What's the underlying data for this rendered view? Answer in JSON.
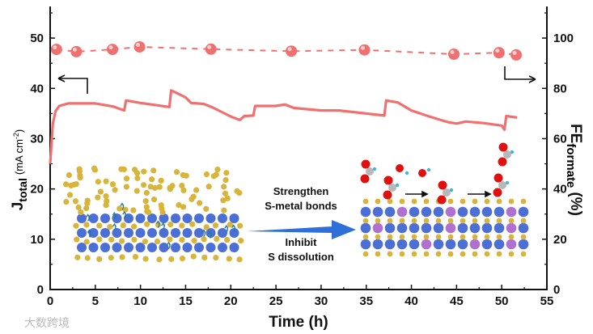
{
  "chart_data": {
    "type": "line",
    "title": "",
    "xlabel": "Time (h)",
    "ylabel_left": {
      "main": "J",
      "sub": "total",
      "unit": "(mA cm",
      "sup": "-2",
      "close": ")"
    },
    "ylabel_right": {
      "main": "FE",
      "sub": "formate",
      "unit": "(%)"
    },
    "xlim": [
      0,
      55
    ],
    "ylim_left": [
      0,
      55
    ],
    "ylim_right": [
      0,
      110
    ],
    "xticks": [
      "0",
      "5",
      "10",
      "15",
      "20",
      "25",
      "30",
      "35",
      "40",
      "45",
      "50",
      "55"
    ],
    "yticks_left": [
      "0",
      "10",
      "20",
      "30",
      "40",
      "50"
    ],
    "yticks_right": [
      "0",
      "20",
      "40",
      "60",
      "80",
      "100"
    ],
    "grid": false,
    "series": [
      {
        "name": "J_total",
        "axis": "left",
        "color": "#f07070",
        "style": "solid",
        "points": [
          [
            0,
            25
          ],
          [
            0.3,
            33
          ],
          [
            0.6,
            35.5
          ],
          [
            1,
            36.5
          ],
          [
            2,
            37
          ],
          [
            5,
            37
          ],
          [
            7,
            36.4
          ],
          [
            8.2,
            35.6
          ],
          [
            8.4,
            37.6
          ],
          [
            10,
            37.1
          ],
          [
            12,
            36.6
          ],
          [
            13.2,
            36.3
          ],
          [
            13.4,
            39.6
          ],
          [
            14,
            39.1
          ],
          [
            15,
            38.2
          ],
          [
            15.6,
            37.1
          ],
          [
            17,
            36.9
          ],
          [
            18,
            36.2
          ],
          [
            19,
            35.3
          ],
          [
            20,
            34.4
          ],
          [
            21,
            33.7
          ],
          [
            21.5,
            34.5
          ],
          [
            22.5,
            34.6
          ],
          [
            22.7,
            36.5
          ],
          [
            25,
            36.5
          ],
          [
            26,
            36.8
          ],
          [
            27,
            36.1
          ],
          [
            30,
            35.6
          ],
          [
            32,
            35.6
          ],
          [
            35,
            35
          ],
          [
            37,
            34.6
          ],
          [
            37.2,
            37.6
          ],
          [
            38.5,
            37.2
          ],
          [
            40,
            35.6
          ],
          [
            42,
            34.4
          ],
          [
            44,
            33.3
          ],
          [
            45,
            33
          ],
          [
            46,
            33.4
          ],
          [
            48,
            33.1
          ],
          [
            50,
            32.6
          ],
          [
            50.3,
            31.8
          ],
          [
            50.5,
            34.5
          ],
          [
            51.7,
            34.2
          ]
        ]
      },
      {
        "name": "FE_formate",
        "axis": "right",
        "color": "#f07070",
        "style": "dashed-with-spheres",
        "points": [
          [
            0.7,
            95.5
          ],
          [
            2.9,
            94.6
          ],
          [
            6.9,
            95.5
          ],
          [
            9.9,
            96.5
          ],
          [
            17.8,
            95.6
          ],
          [
            26.7,
            94.8
          ],
          [
            34.8,
            95.3
          ],
          [
            44.7,
            93.6
          ],
          [
            49.7,
            94.2
          ],
          [
            51.6,
            93.3
          ]
        ]
      }
    ],
    "annotations": {
      "left_axis_arrow": "arrow pointing to left axis",
      "right_axis_arrow": "arrow pointing to right axis"
    },
    "inset": {
      "arrow_text_top": [
        "Strengthen",
        "S-metal bonds"
      ],
      "arrow_text_bottom": [
        "Inhibit",
        "S dissolution"
      ],
      "colors": {
        "sulfur": "#d8b43a",
        "metal": "#4c6fd6",
        "dopant": "#b070d0",
        "oxygen": "#e01010",
        "carbon": "#b8b8b8",
        "hydrogen": "#40b8d8",
        "arrow": "#2f6fd8"
      }
    }
  },
  "watermark": "大数跨境"
}
